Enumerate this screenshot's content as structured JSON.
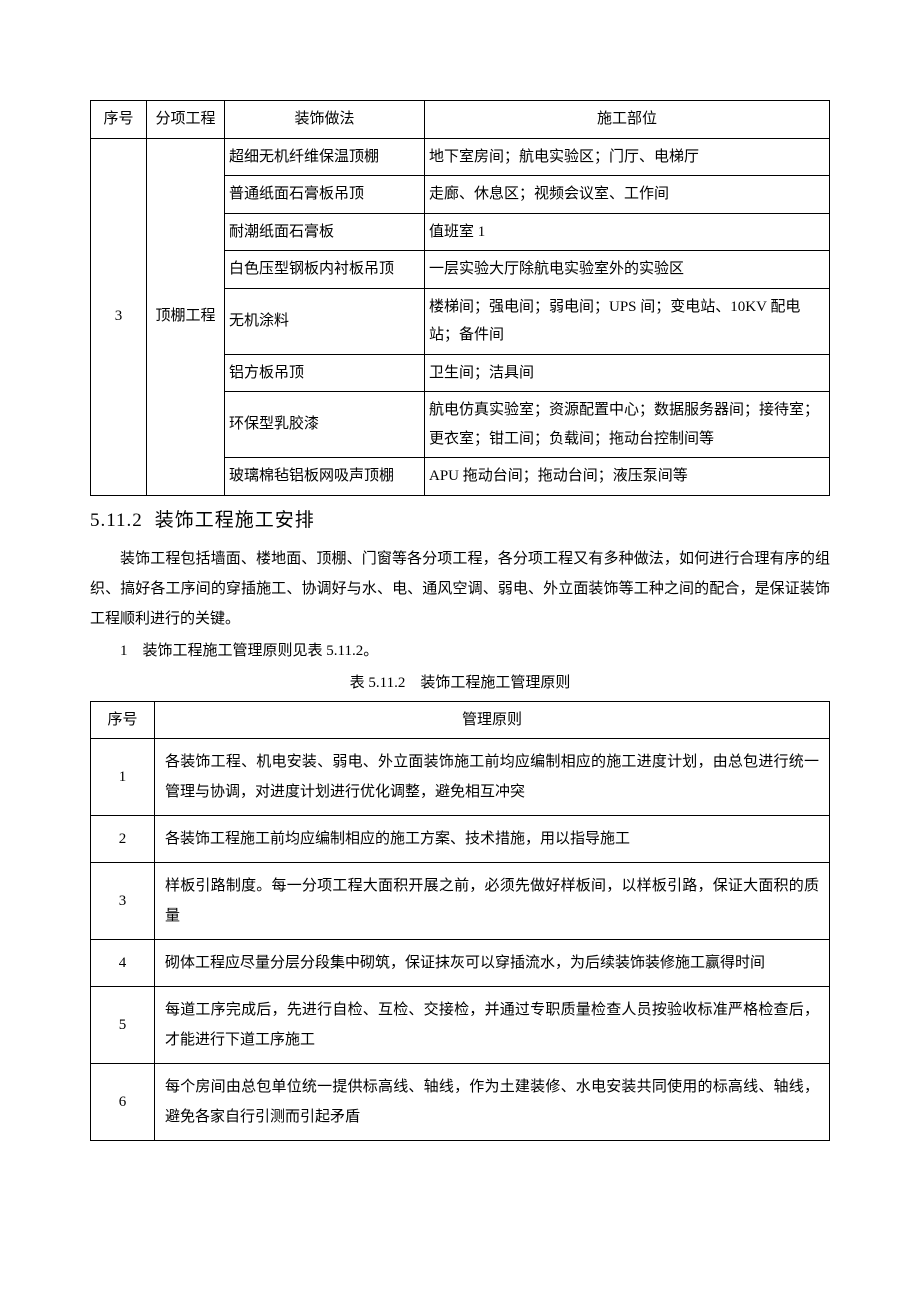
{
  "table1": {
    "headers": {
      "seq": "序号",
      "project": "分项工程",
      "method": "装饰做法",
      "location": "施工部位"
    },
    "seq_value": "3",
    "project_value": "顶棚工程",
    "rows": [
      {
        "method": "超细无机纤维保温顶棚",
        "location": "地下室房间；航电实验区；门厅、电梯厅"
      },
      {
        "method": "普通纸面石膏板吊顶",
        "location": "走廊、休息区；视频会议室、工作间"
      },
      {
        "method": "耐潮纸面石膏板",
        "location": "值班室 1"
      },
      {
        "method": "白色压型钢板内衬板吊顶",
        "location": "一层实验大厅除航电实验室外的实验区"
      },
      {
        "method": "无机涂料",
        "location": "楼梯间；强电间；弱电间；UPS 间；变电站、10KV 配电站；备件间"
      },
      {
        "method": "铝方板吊顶",
        "location": "卫生间；洁具间"
      },
      {
        "method": "环保型乳胶漆",
        "location": "航电仿真实验室；资源配置中心；数据服务器间；接待室；更衣室；钳工间；负载间；拖动台控制间等"
      },
      {
        "method": "玻璃棉毡铝板网吸声顶棚",
        "location": "APU 拖动台间；拖动台间；液压泵间等"
      }
    ]
  },
  "heading": {
    "number": "5.11.2",
    "title": "装饰工程施工安排"
  },
  "paragraphs": {
    "p1": "装饰工程包括墙面、楼地面、顶棚、门窗等各分项工程，各分项工程又有多种做法，如何进行合理有序的组织、搞好各工序间的穿插施工、协调好与水、电、通风空调、弱电、外立面装饰等工种之间的配合，是保证装饰工程顺利进行的关键。",
    "p2": "1　装饰工程施工管理原则见表 5.11.2。"
  },
  "table2": {
    "caption": "表 5.11.2　装饰工程施工管理原则",
    "headers": {
      "seq": "序号",
      "principle": "管理原则"
    },
    "rows": [
      {
        "seq": "1",
        "principle": "各装饰工程、机电安装、弱电、外立面装饰施工前均应编制相应的施工进度计划，由总包进行统一管理与协调，对进度计划进行优化调整，避免相互冲突"
      },
      {
        "seq": "2",
        "principle": "各装饰工程施工前均应编制相应的施工方案、技术措施，用以指导施工"
      },
      {
        "seq": "3",
        "principle": "样板引路制度。每一分项工程大面积开展之前，必须先做好样板间，以样板引路，保证大面积的质量"
      },
      {
        "seq": "4",
        "principle": "砌体工程应尽量分层分段集中砌筑，保证抹灰可以穿插流水，为后续装饰装修施工赢得时间"
      },
      {
        "seq": "5",
        "principle": "每道工序完成后，先进行自检、互检、交接检，并通过专职质量检查人员按验收标准严格检查后，才能进行下道工序施工"
      },
      {
        "seq": "6",
        "principle": "每个房间由总包单位统一提供标高线、轴线，作为土建装修、水电安装共同使用的标高线、轴线，避免各家自行引测而引起矛盾"
      }
    ]
  }
}
